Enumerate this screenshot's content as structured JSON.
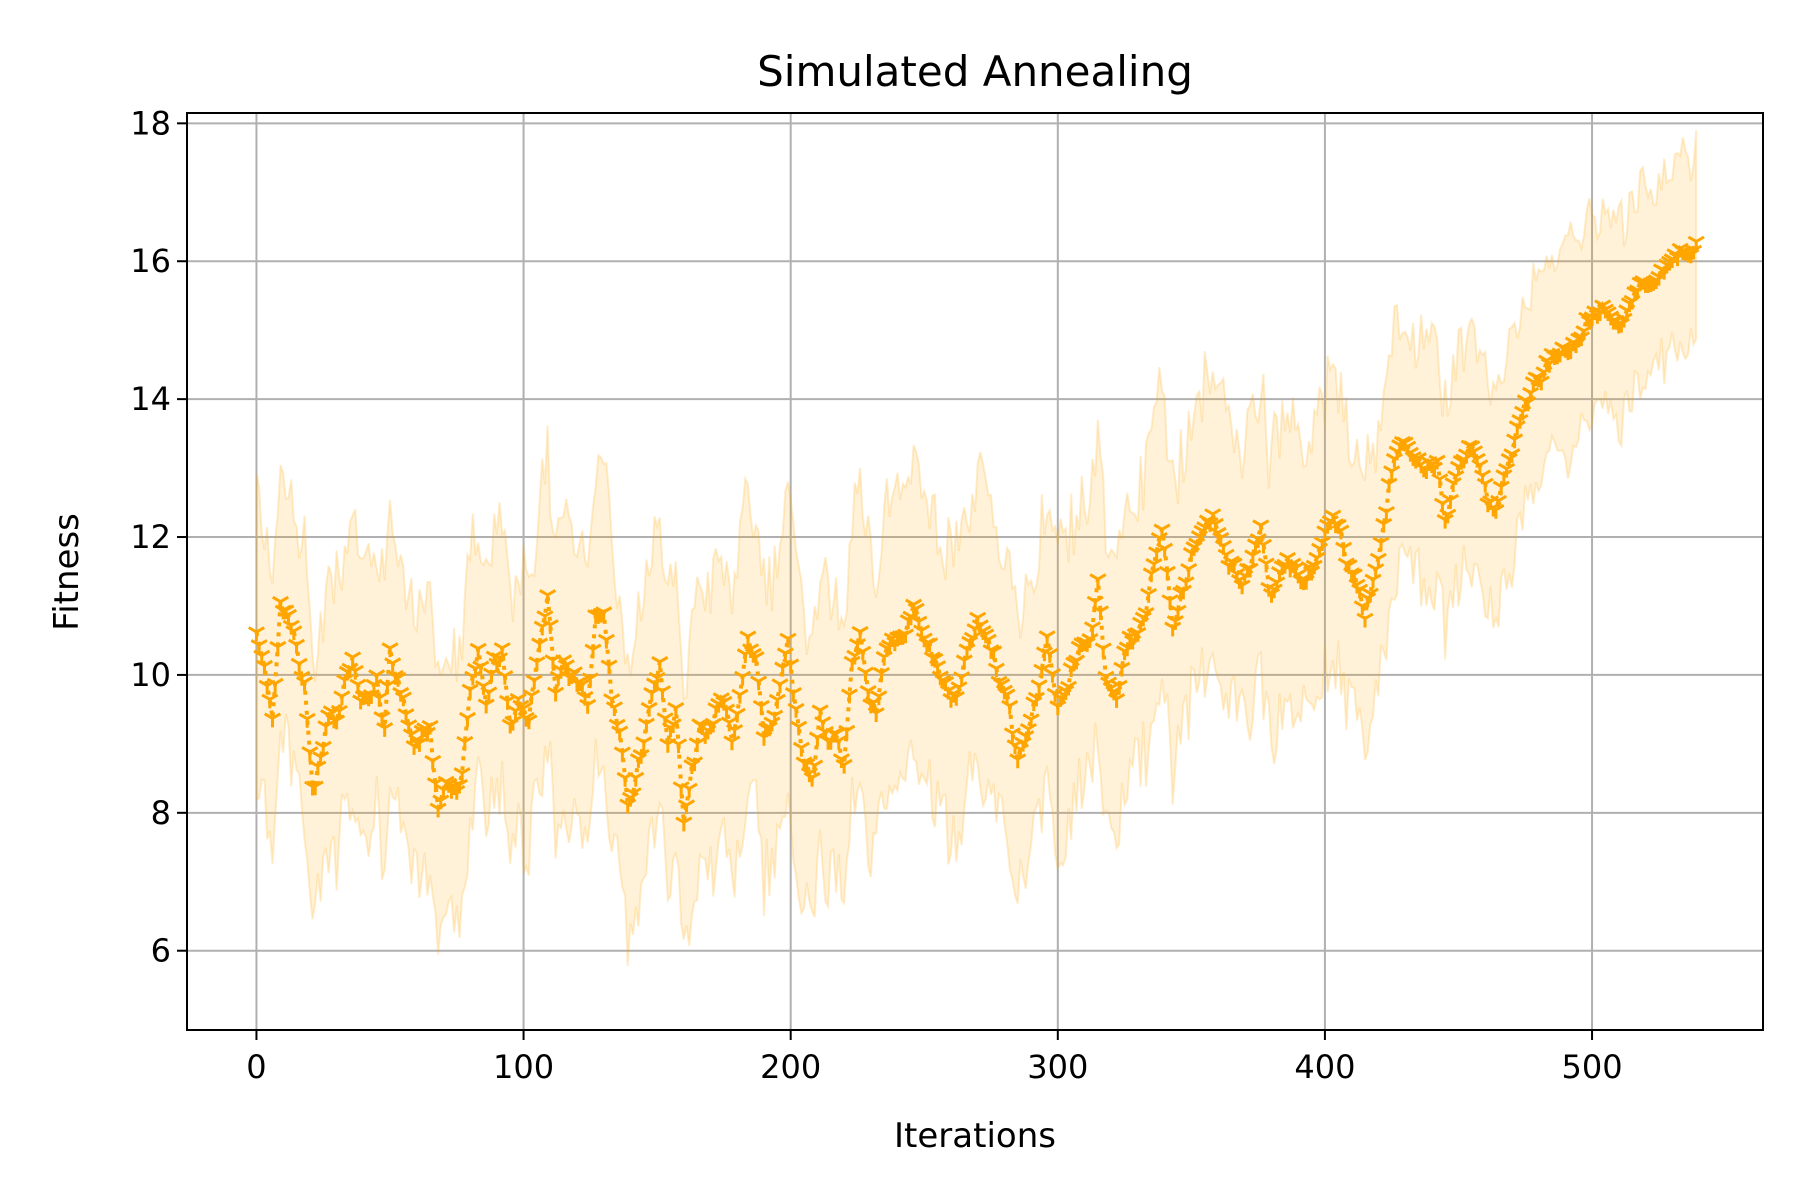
{
  "colors": {
    "series": "#FFA500",
    "band": "#FFA500",
    "grid": "#b0b0b0",
    "axis": "#000000"
  },
  "chart_data": {
    "type": "line",
    "title": "Simulated Annealing",
    "xlabel": "Iterations",
    "ylabel": "Fitness",
    "xlim": [
      -26,
      564
    ],
    "ylim": [
      4.85,
      18.15
    ],
    "xticks": [
      0,
      100,
      200,
      300,
      400,
      500
    ],
    "yticks": [
      6,
      8,
      10,
      12,
      14,
      16,
      18
    ],
    "grid": true,
    "legend": "none",
    "marker": "tri_down",
    "linestyle": "dotted",
    "series": [
      {
        "x_start": 0,
        "x_end": 539,
        "x_step": 1,
        "mean_keypoints": [
          [
            0,
            10.6
          ],
          [
            3,
            10.2
          ],
          [
            6,
            9.4
          ],
          [
            9,
            11.0
          ],
          [
            12,
            10.8
          ],
          [
            15,
            10.4
          ],
          [
            18,
            9.9
          ],
          [
            21,
            8.4
          ],
          [
            24,
            8.7
          ],
          [
            27,
            9.4
          ],
          [
            30,
            9.3
          ],
          [
            33,
            10.0
          ],
          [
            36,
            10.3
          ],
          [
            39,
            9.6
          ],
          [
            42,
            9.6
          ],
          [
            45,
            9.9
          ],
          [
            48,
            9.3
          ],
          [
            50,
            10.4
          ],
          [
            53,
            9.9
          ],
          [
            56,
            9.4
          ],
          [
            59,
            8.9
          ],
          [
            62,
            9.2
          ],
          [
            65,
            9.3
          ],
          [
            68,
            8.0
          ],
          [
            71,
            8.4
          ],
          [
            74,
            8.3
          ],
          [
            77,
            8.6
          ],
          [
            80,
            9.9
          ],
          [
            83,
            10.3
          ],
          [
            86,
            9.5
          ],
          [
            89,
            10.2
          ],
          [
            92,
            10.4
          ],
          [
            95,
            9.3
          ],
          [
            98,
            9.6
          ],
          [
            102,
            9.3
          ],
          [
            106,
            10.5
          ],
          [
            109,
            11.2
          ],
          [
            112,
            9.8
          ],
          [
            115,
            10.1
          ],
          [
            118,
            9.9
          ],
          [
            121,
            10.0
          ],
          [
            124,
            9.6
          ],
          [
            127,
            10.8
          ],
          [
            130,
            10.9
          ],
          [
            133,
            9.6
          ],
          [
            136,
            9.3
          ],
          [
            139,
            8.2
          ],
          [
            142,
            8.5
          ],
          [
            145,
            9.0
          ],
          [
            148,
            9.7
          ],
          [
            151,
            10.2
          ],
          [
            154,
            9.1
          ],
          [
            157,
            9.5
          ],
          [
            160,
            7.8
          ],
          [
            163,
            8.6
          ],
          [
            166,
            9.3
          ],
          [
            169,
            9.2
          ],
          [
            172,
            9.5
          ],
          [
            175,
            9.6
          ],
          [
            178,
            9.0
          ],
          [
            181,
            9.8
          ],
          [
            184,
            10.6
          ],
          [
            187,
            10.2
          ],
          [
            190,
            9.1
          ],
          [
            193,
            9.2
          ],
          [
            196,
            9.9
          ],
          [
            199,
            10.6
          ],
          [
            202,
            9.4
          ],
          [
            205,
            8.7
          ],
          [
            208,
            8.4
          ],
          [
            211,
            9.6
          ],
          [
            214,
            9.1
          ],
          [
            217,
            9.1
          ],
          [
            220,
            8.6
          ],
          [
            223,
            10.1
          ],
          [
            226,
            10.7
          ],
          [
            229,
            9.8
          ],
          [
            232,
            9.4
          ],
          [
            235,
            10.2
          ],
          [
            238,
            10.5
          ],
          [
            242,
            10.6
          ],
          [
            246,
            11.0
          ],
          [
            250,
            10.5
          ],
          [
            254,
            10.3
          ],
          [
            258,
            9.9
          ],
          [
            262,
            9.6
          ],
          [
            266,
            10.3
          ],
          [
            270,
            10.9
          ],
          [
            274,
            10.6
          ],
          [
            278,
            9.9
          ],
          [
            282,
            9.5
          ],
          [
            285,
            8.8
          ],
          [
            288,
            9.2
          ],
          [
            292,
            9.6
          ],
          [
            296,
            10.5
          ],
          [
            300,
            9.6
          ],
          [
            304,
            9.9
          ],
          [
            308,
            10.3
          ],
          [
            312,
            10.5
          ],
          [
            315,
            11.4
          ],
          [
            318,
            10.0
          ],
          [
            322,
            9.6
          ],
          [
            325,
            10.3
          ],
          [
            329,
            10.6
          ],
          [
            333,
            11.0
          ],
          [
            336,
            11.6
          ],
          [
            339,
            12.1
          ],
          [
            343,
            10.7
          ],
          [
            346,
            11.2
          ],
          [
            350,
            11.7
          ],
          [
            354,
            12.0
          ],
          [
            358,
            12.4
          ],
          [
            362,
            11.9
          ],
          [
            366,
            11.5
          ],
          [
            369,
            11.2
          ],
          [
            372,
            11.6
          ],
          [
            376,
            12.2
          ],
          [
            380,
            11.1
          ],
          [
            384,
            11.5
          ],
          [
            388,
            11.7
          ],
          [
            392,
            11.4
          ],
          [
            396,
            11.5
          ],
          [
            400,
            12.0
          ],
          [
            403,
            12.4
          ],
          [
            406,
            12.1
          ],
          [
            409,
            11.5
          ],
          [
            412,
            11.3
          ],
          [
            415,
            10.8
          ],
          [
            418,
            11.4
          ],
          [
            421,
            12.0
          ],
          [
            424,
            12.7
          ],
          [
            427,
            13.2
          ],
          [
            430,
            13.3
          ],
          [
            434,
            13.2
          ],
          [
            438,
            13.0
          ],
          [
            442,
            13.0
          ],
          [
            445,
            12.2
          ],
          [
            448,
            12.8
          ],
          [
            451,
            13.2
          ],
          [
            455,
            13.3
          ],
          [
            458,
            13.0
          ],
          [
            461,
            12.6
          ],
          [
            464,
            12.5
          ],
          [
            467,
            12.9
          ],
          [
            470,
            13.2
          ],
          [
            474,
            13.8
          ],
          [
            478,
            14.3
          ],
          [
            482,
            14.4
          ],
          [
            486,
            14.6
          ],
          [
            490,
            14.7
          ],
          [
            494,
            14.9
          ],
          [
            498,
            15.1
          ],
          [
            502,
            15.2
          ],
          [
            506,
            15.3
          ],
          [
            510,
            15.1
          ],
          [
            514,
            15.3
          ],
          [
            518,
            15.6
          ],
          [
            522,
            15.7
          ],
          [
            526,
            15.9
          ],
          [
            530,
            16.0
          ],
          [
            534,
            16.1
          ],
          [
            539,
            16.3
          ]
        ],
        "band_half_width_keypoints": [
          [
            0,
            1.8
          ],
          [
            100,
            1.9
          ],
          [
            200,
            1.9
          ],
          [
            300,
            1.9
          ],
          [
            350,
            1.9
          ],
          [
            400,
            1.9
          ],
          [
            450,
            1.5
          ],
          [
            500,
            1.3
          ],
          [
            539,
            1.2
          ]
        ]
      }
    ]
  }
}
